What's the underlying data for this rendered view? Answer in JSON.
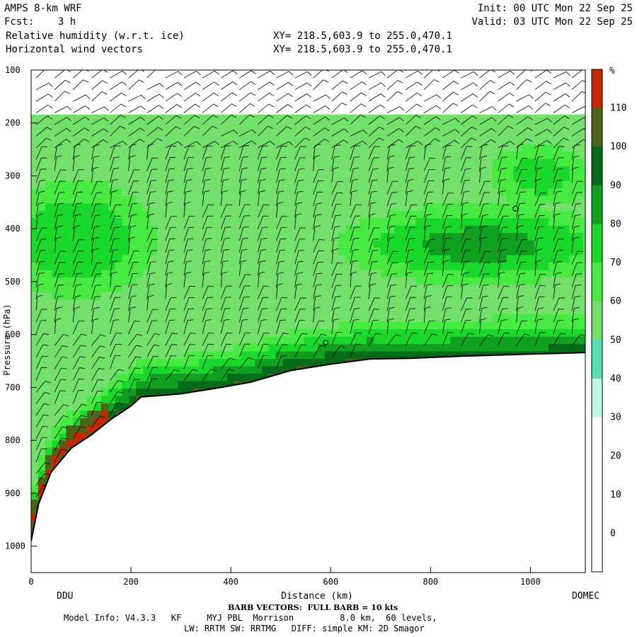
{
  "header": {
    "model": "AMPS 8-km WRF",
    "fcst_label": "Fcst:",
    "fcst_value": "3 h",
    "field1": "Relative humidity (w.r.t. ice)",
    "field2": "Horizontal wind vectors",
    "init": "Init: 00 UTC Mon 22 Sep 25",
    "valid": "Valid: 03 UTC Mon 22 Sep 25",
    "xy1": "XY= 218.5,603.9 to 255.0,470.1",
    "xy2": "XY= 218.5,603.9 to 255.0,470.1"
  },
  "footer": {
    "barb_note": "BARB VECTORS:  FULL BARB = 10 kts",
    "model_info": "Model Info: V4.3.3   KF     MYJ PBL  Morrison         8.0 km,  60 levels,",
    "physics": "LW: RRTM SW: RRTMG   DIFF: simple KM: 2D Smagor",
    "left_end": "DDU",
    "right_end": "DOMEC"
  },
  "chart_data": {
    "type": "heatmap",
    "xlabel": "Distance (km)",
    "ylabel": "Pressure (hPa)",
    "xlim": [
      0,
      1110
    ],
    "ylim": [
      1050,
      100
    ],
    "x_ticks": [
      0,
      200,
      400,
      600,
      800,
      1000
    ],
    "y_ticks": [
      100,
      200,
      300,
      400,
      500,
      600,
      700,
      800,
      900,
      1000
    ],
    "colorbar": {
      "unit": "%",
      "labels": [
        110,
        100,
        90,
        80,
        70,
        60,
        50,
        40,
        30,
        20,
        10,
        0
      ],
      "colors": [
        "#c42800",
        "#4a6418",
        "#036c18",
        "#10a020",
        "#18d82a",
        "#46ea40",
        "#74e06c",
        "#58dcb0",
        "#bff8e8",
        "#ffffff",
        "#ffffff",
        "#ffffff",
        "#ffffff"
      ]
    },
    "terrain": [
      {
        "x": 0,
        "p": 990
      },
      {
        "x": 15,
        "p": 920
      },
      {
        "x": 40,
        "p": 860
      },
      {
        "x": 80,
        "p": 815
      },
      {
        "x": 120,
        "p": 790
      },
      {
        "x": 160,
        "p": 760
      },
      {
        "x": 200,
        "p": 735
      },
      {
        "x": 220,
        "p": 718
      },
      {
        "x": 300,
        "p": 712
      },
      {
        "x": 380,
        "p": 700
      },
      {
        "x": 440,
        "p": 690
      },
      {
        "x": 520,
        "p": 668
      },
      {
        "x": 600,
        "p": 656
      },
      {
        "x": 680,
        "p": 646
      },
      {
        "x": 760,
        "p": 645
      },
      {
        "x": 860,
        "p": 641
      },
      {
        "x": 960,
        "p": 638
      },
      {
        "x": 1110,
        "p": 634
      }
    ],
    "annotations": [
      {
        "x": 970,
        "p": 362,
        "label": "o"
      },
      {
        "x": 590,
        "p": 615,
        "label": "o"
      }
    ]
  }
}
